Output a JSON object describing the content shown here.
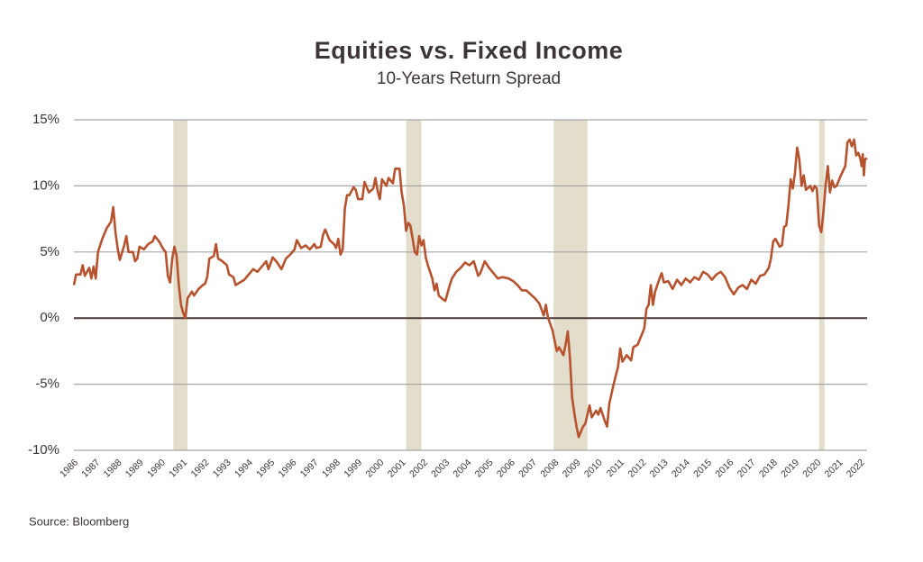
{
  "chart_data": {
    "type": "line",
    "title": "Equities vs. Fixed Income",
    "subtitle": "10-Years Return Spread",
    "source": "Source: Bloomberg",
    "color": "#b6532e",
    "band_color": "#e3ddcc",
    "grid_color": "#a6a6a6",
    "zero_line_color": "#4a3a38",
    "shaded_periods": [
      [
        1990.55,
        1991.2
      ],
      [
        2001.2,
        2001.9
      ],
      [
        2007.95,
        2009.5
      ],
      [
        2020.1,
        2020.35
      ]
    ],
    "xlim": [
      1986,
      2022.3
    ],
    "xticks": [
      1986,
      1987,
      1988,
      1989,
      1990,
      1991,
      1992,
      1993,
      1994,
      1995,
      1996,
      1997,
      1998,
      1999,
      2000,
      2001,
      2002,
      2003,
      2004,
      2005,
      2006,
      2007,
      2008,
      2009,
      2010,
      2011,
      2012,
      2013,
      2014,
      2015,
      2016,
      2017,
      2018,
      2019,
      2020,
      2021,
      2022
    ],
    "ylim": [
      -10,
      15
    ],
    "yticks": [
      {
        "value": -10,
        "label": "-10%"
      },
      {
        "value": -5,
        "label": "-5%"
      },
      {
        "value": 0,
        "label": "0%"
      },
      {
        "value": 5,
        "label": "5%"
      },
      {
        "value": 10,
        "label": "10%"
      },
      {
        "value": 15,
        "label": "15%"
      }
    ],
    "grid": true,
    "x": [
      1986.0,
      1986.1,
      1986.3,
      1986.4,
      1986.5,
      1986.7,
      1986.8,
      1986.9,
      1987.0,
      1987.1,
      1987.3,
      1987.5,
      1987.7,
      1987.8,
      1987.9,
      1988.0,
      1988.1,
      1988.3,
      1988.4,
      1988.5,
      1988.7,
      1988.8,
      1988.9,
      1989.0,
      1989.2,
      1989.4,
      1989.6,
      1989.7,
      1989.9,
      1990.1,
      1990.2,
      1990.3,
      1990.4,
      1990.5,
      1990.6,
      1990.7,
      1990.8,
      1990.9,
      1991.0,
      1991.1,
      1991.2,
      1991.4,
      1991.5,
      1991.7,
      1991.9,
      1992.0,
      1992.1,
      1992.2,
      1992.4,
      1992.5,
      1992.6,
      1992.8,
      1993.0,
      1993.1,
      1993.3,
      1993.4,
      1993.6,
      1993.8,
      1994.0,
      1994.2,
      1994.4,
      1994.6,
      1994.8,
      1994.9,
      1995.1,
      1995.3,
      1995.5,
      1995.7,
      1995.9,
      1996.1,
      1996.2,
      1996.4,
      1996.6,
      1996.8,
      1997.0,
      1997.1,
      1997.3,
      1997.4,
      1997.5,
      1997.7,
      1997.9,
      1998.0,
      1998.1,
      1998.2,
      1998.3,
      1998.4,
      1998.5,
      1998.6,
      1998.8,
      1998.9,
      1999.0,
      1999.2,
      1999.3,
      1999.5,
      1999.7,
      1999.8,
      1999.9,
      2000.0,
      2000.1,
      2000.3,
      2000.4,
      2000.6,
      2000.7,
      2000.9,
      2001.0,
      2001.1,
      2001.2,
      2001.3,
      2001.4,
      2001.5,
      2001.6,
      2001.7,
      2001.8,
      2001.9,
      2002.0,
      2002.1,
      2002.2,
      2002.4,
      2002.5,
      2002.6,
      2002.7,
      2002.9,
      2003.0,
      2003.2,
      2003.3,
      2003.5,
      2003.7,
      2003.9,
      2004.1,
      2004.3,
      2004.5,
      2004.6,
      2004.8,
      2005.0,
      2005.2,
      2005.4,
      2005.6,
      2005.9,
      2006.1,
      2006.3,
      2006.5,
      2006.7,
      2006.9,
      2007.1,
      2007.3,
      2007.5,
      2007.6,
      2007.7,
      2007.9,
      2008.0,
      2008.1,
      2008.2,
      2008.4,
      2008.5,
      2008.6,
      2008.7,
      2008.8,
      2008.9,
      2009.0,
      2009.1,
      2009.3,
      2009.4,
      2009.6,
      2009.7,
      2009.9,
      2010.0,
      2010.1,
      2010.3,
      2010.4,
      2010.5,
      2010.7,
      2010.9,
      2011.0,
      2011.1,
      2011.3,
      2011.5,
      2011.6,
      2011.8,
      2012.0,
      2012.1,
      2012.2,
      2012.3,
      2012.4,
      2012.5,
      2012.6,
      2012.8,
      2012.9,
      2013.0,
      2013.2,
      2013.4,
      2013.6,
      2013.8,
      2014.0,
      2014.2,
      2014.4,
      2014.6,
      2014.8,
      2015.0,
      2015.2,
      2015.4,
      2015.6,
      2015.8,
      2016.0,
      2016.2,
      2016.4,
      2016.6,
      2016.8,
      2017.0,
      2017.2,
      2017.4,
      2017.6,
      2017.8,
      2017.9,
      2018.0,
      2018.1,
      2018.3,
      2018.4,
      2018.5,
      2018.6,
      2018.7,
      2018.8,
      2018.9,
      2019.0,
      2019.1,
      2019.2,
      2019.3,
      2019.4,
      2019.5,
      2019.7,
      2019.8,
      2019.9,
      2020.0,
      2020.1,
      2020.2,
      2020.3,
      2020.4,
      2020.5,
      2020.6,
      2020.7,
      2020.8,
      2020.9,
      2021.1,
      2021.3,
      2021.4,
      2021.5,
      2021.6,
      2021.7,
      2021.8,
      2021.9,
      2022.0,
      2022.05,
      2022.1,
      2022.15,
      2022.2,
      2022.3
    ],
    "values": [
      2.5,
      3.3,
      3.3,
      4.0,
      3.2,
      3.8,
      3.0,
      3.9,
      3.0,
      5.0,
      6.0,
      6.8,
      7.3,
      8.4,
      6.5,
      5.3,
      4.4,
      5.5,
      6.2,
      5.0,
      5.0,
      4.3,
      4.5,
      5.4,
      5.2,
      5.6,
      5.8,
      6.2,
      5.8,
      5.2,
      5.0,
      3.2,
      2.7,
      4.5,
      5.4,
      4.7,
      2.5,
      1.0,
      0.4,
      0.0,
      1.5,
      2.0,
      1.7,
      2.2,
      2.5,
      2.6,
      3.1,
      4.5,
      4.7,
      5.6,
      4.5,
      4.3,
      4.0,
      3.3,
      3.1,
      2.5,
      2.7,
      2.9,
      3.3,
      3.7,
      3.5,
      3.9,
      4.3,
      3.7,
      4.6,
      4.2,
      3.7,
      4.5,
      4.8,
      5.2,
      5.9,
      5.3,
      5.5,
      5.2,
      5.6,
      5.3,
      5.4,
      6.3,
      6.7,
      5.9,
      5.6,
      5.3,
      6.0,
      4.8,
      5.2,
      8.3,
      9.3,
      9.3,
      9.9,
      9.7,
      9.0,
      9.0,
      10.3,
      9.5,
      9.8,
      10.6,
      9.6,
      9.0,
      10.5,
      10.0,
      10.6,
      10.2,
      11.3,
      11.3,
      9.5,
      8.5,
      6.6,
      7.2,
      7.0,
      6.0,
      5.0,
      4.8,
      6.2,
      5.5,
      5.9,
      4.6,
      4.0,
      3.0,
      2.1,
      2.6,
      1.7,
      1.4,
      1.3,
      2.5,
      3.0,
      3.5,
      3.8,
      4.2,
      4.0,
      4.3,
      3.2,
      3.4,
      4.3,
      3.8,
      3.4,
      3.0,
      3.1,
      3.0,
      2.8,
      2.5,
      2.1,
      2.1,
      1.8,
      1.5,
      1.1,
      0.2,
      1.0,
      0.0,
      -0.9,
      -1.7,
      -2.5,
      -2.2,
      -2.8,
      -2.0,
      -1.0,
      -3.0,
      -6.0,
      -7.2,
      -8.2,
      -9.0,
      -8.2,
      -8.0,
      -6.6,
      -7.5,
      -7.0,
      -7.3,
      -6.8,
      -7.8,
      -8.2,
      -6.5,
      -5.0,
      -3.7,
      -2.3,
      -3.3,
      -2.8,
      -3.2,
      -2.2,
      -2.0,
      -1.2,
      -0.8,
      0.7,
      1.0,
      2.5,
      1.0,
      2.0,
      3.0,
      3.4,
      2.7,
      2.8,
      2.2,
      2.9,
      2.5,
      3.0,
      2.7,
      3.1,
      2.9,
      3.5,
      3.3,
      2.9,
      3.3,
      3.5,
      3.1,
      2.3,
      1.8,
      2.3,
      2.5,
      2.2,
      2.9,
      2.6,
      3.2,
      3.3,
      3.8,
      4.5,
      5.8,
      6.0,
      5.4,
      5.5,
      6.9,
      7.0,
      8.5,
      10.5,
      9.8,
      11.0,
      12.9,
      12.0,
      10.0,
      10.8,
      9.7,
      10.0,
      9.6,
      10.0,
      9.8,
      7.0,
      6.5,
      8.0,
      10.0,
      11.5,
      9.5,
      10.4,
      9.9,
      10.0,
      10.8,
      11.5,
      13.3,
      13.5,
      13.0,
      13.5,
      12.3,
      12.5,
      12.0,
      11.5,
      12.4,
      10.8,
      12.0,
      12.1
    ]
  }
}
